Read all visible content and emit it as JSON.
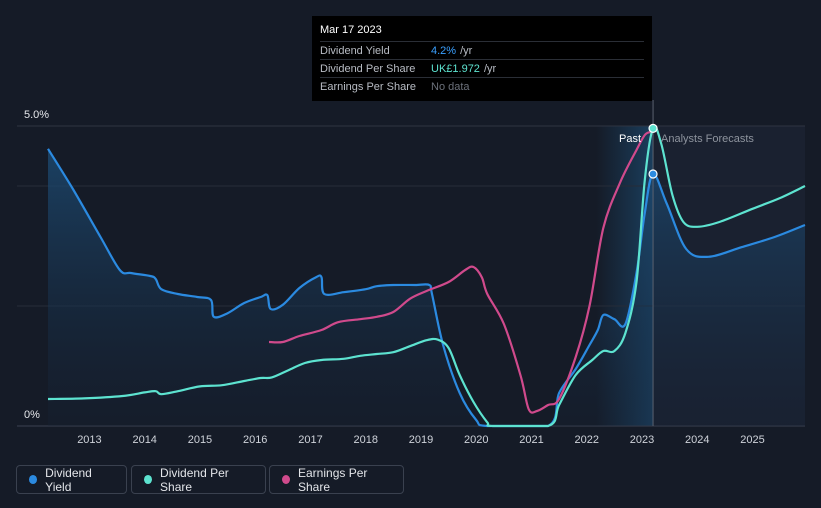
{
  "tooltip": {
    "date": "Mar 17 2023",
    "rows": [
      {
        "label": "Dividend Yield",
        "value": "4.2%",
        "unit": "/yr"
      },
      {
        "label": "Dividend Per Share",
        "value": "UK£1.972",
        "unit": "/yr"
      },
      {
        "label": "Earnings Per Share",
        "value": "No data"
      }
    ]
  },
  "labels": {
    "past": "Past",
    "forecast": "Analysts Forecasts"
  },
  "legend": [
    {
      "label": "Dividend Yield",
      "color": "#2b8ae0"
    },
    {
      "label": "Dividend Per Share",
      "color": "#5de3d0"
    },
    {
      "label": "Earnings Per Share",
      "color": "#d04a8c"
    }
  ],
  "chart_data": {
    "type": "line",
    "x_ticks": [
      "2013",
      "2014",
      "2015",
      "2016",
      "2017",
      "2018",
      "2019",
      "2020",
      "2021",
      "2022",
      "2023",
      "2024",
      "2025"
    ],
    "y_ticks": [
      "0%",
      "5.0%"
    ],
    "ylim": [
      0,
      5
    ],
    "xlim": [
      2012.25,
      2025.95
    ],
    "marker_x": 2023.2,
    "past_end_x": 2023.2,
    "colors": {
      "yield": "#2b8ae0",
      "dps": "#5de3d0",
      "eps": "#d04a8c"
    },
    "series": [
      {
        "name": "Dividend Yield",
        "points": [
          [
            2012.25,
            4.62
          ],
          [
            2012.7,
            3.95
          ],
          [
            2013.2,
            3.15
          ],
          [
            2013.55,
            2.6
          ],
          [
            2013.75,
            2.55
          ],
          [
            2014.1,
            2.5
          ],
          [
            2014.2,
            2.45
          ],
          [
            2014.3,
            2.28
          ],
          [
            2014.6,
            2.2
          ],
          [
            2014.95,
            2.15
          ],
          [
            2015.2,
            2.1
          ],
          [
            2015.25,
            1.82
          ],
          [
            2015.5,
            1.88
          ],
          [
            2015.8,
            2.05
          ],
          [
            2016.1,
            2.15
          ],
          [
            2016.22,
            2.18
          ],
          [
            2016.28,
            1.95
          ],
          [
            2016.5,
            2.02
          ],
          [
            2016.8,
            2.3
          ],
          [
            2017.1,
            2.48
          ],
          [
            2017.2,
            2.48
          ],
          [
            2017.25,
            2.2
          ],
          [
            2017.6,
            2.23
          ],
          [
            2018.0,
            2.28
          ],
          [
            2018.2,
            2.33
          ],
          [
            2018.5,
            2.35
          ],
          [
            2018.9,
            2.35
          ],
          [
            2019.15,
            2.35
          ],
          [
            2019.2,
            2.2
          ],
          [
            2019.4,
            1.35
          ],
          [
            2019.7,
            0.55
          ],
          [
            2020.0,
            0.1
          ],
          [
            2020.2,
            0.0
          ],
          [
            2021.3,
            0.0
          ],
          [
            2021.5,
            0.55
          ],
          [
            2021.8,
            0.95
          ],
          [
            2022.05,
            1.35
          ],
          [
            2022.2,
            1.6
          ],
          [
            2022.3,
            1.85
          ],
          [
            2022.5,
            1.78
          ],
          [
            2022.7,
            1.7
          ],
          [
            2022.9,
            2.55
          ],
          [
            2023.05,
            3.55
          ],
          [
            2023.2,
            4.2
          ],
          [
            2023.45,
            3.7
          ],
          [
            2023.8,
            2.95
          ],
          [
            2024.2,
            2.82
          ],
          [
            2024.8,
            2.98
          ],
          [
            2025.4,
            3.15
          ],
          [
            2025.95,
            3.35
          ]
        ]
      },
      {
        "name": "Dividend Per Share",
        "points": [
          [
            2012.25,
            0.45
          ],
          [
            2012.9,
            0.46
          ],
          [
            2013.6,
            0.5
          ],
          [
            2014.0,
            0.56
          ],
          [
            2014.2,
            0.58
          ],
          [
            2014.3,
            0.53
          ],
          [
            2014.6,
            0.58
          ],
          [
            2015.0,
            0.66
          ],
          [
            2015.4,
            0.68
          ],
          [
            2015.8,
            0.75
          ],
          [
            2016.1,
            0.8
          ],
          [
            2016.3,
            0.81
          ],
          [
            2016.6,
            0.93
          ],
          [
            2016.9,
            1.05
          ],
          [
            2017.2,
            1.1
          ],
          [
            2017.6,
            1.12
          ],
          [
            2017.9,
            1.17
          ],
          [
            2018.2,
            1.2
          ],
          [
            2018.5,
            1.23
          ],
          [
            2018.8,
            1.33
          ],
          [
            2019.1,
            1.43
          ],
          [
            2019.3,
            1.44
          ],
          [
            2019.5,
            1.3
          ],
          [
            2019.7,
            0.85
          ],
          [
            2019.95,
            0.4
          ],
          [
            2020.2,
            0.06
          ],
          [
            2020.3,
            0.0
          ],
          [
            2021.3,
            0.0
          ],
          [
            2021.5,
            0.35
          ],
          [
            2021.8,
            0.85
          ],
          [
            2022.1,
            1.1
          ],
          [
            2022.3,
            1.25
          ],
          [
            2022.5,
            1.25
          ],
          [
            2022.7,
            1.55
          ],
          [
            2022.9,
            2.4
          ],
          [
            2023.05,
            4.1
          ],
          [
            2023.2,
            4.96
          ],
          [
            2023.35,
            4.7
          ],
          [
            2023.55,
            3.85
          ],
          [
            2023.75,
            3.4
          ],
          [
            2024.0,
            3.32
          ],
          [
            2024.4,
            3.4
          ],
          [
            2025.0,
            3.62
          ],
          [
            2025.5,
            3.8
          ],
          [
            2025.95,
            4.0
          ]
        ]
      },
      {
        "name": "Earnings Per Share",
        "points": [
          [
            2016.25,
            1.4
          ],
          [
            2016.5,
            1.4
          ],
          [
            2016.8,
            1.5
          ],
          [
            2017.2,
            1.6
          ],
          [
            2017.5,
            1.73
          ],
          [
            2017.9,
            1.78
          ],
          [
            2018.2,
            1.82
          ],
          [
            2018.5,
            1.9
          ],
          [
            2018.8,
            2.12
          ],
          [
            2019.1,
            2.25
          ],
          [
            2019.5,
            2.4
          ],
          [
            2019.8,
            2.6
          ],
          [
            2019.95,
            2.65
          ],
          [
            2020.1,
            2.48
          ],
          [
            2020.2,
            2.2
          ],
          [
            2020.5,
            1.7
          ],
          [
            2020.8,
            0.85
          ],
          [
            2020.95,
            0.28
          ],
          [
            2021.1,
            0.25
          ],
          [
            2021.3,
            0.35
          ],
          [
            2021.5,
            0.45
          ],
          [
            2021.8,
            1.15
          ],
          [
            2022.05,
            2.0
          ],
          [
            2022.3,
            3.3
          ],
          [
            2022.6,
            4.05
          ],
          [
            2022.9,
            4.6
          ],
          [
            2023.05,
            4.85
          ],
          [
            2023.15,
            4.9
          ]
        ]
      }
    ]
  }
}
